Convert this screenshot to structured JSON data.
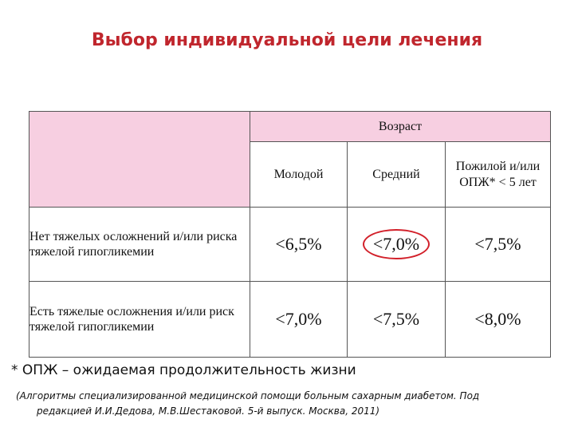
{
  "title": "Выбор индивидуальной цели лечения",
  "table": {
    "group_header": "Возраст",
    "columns": [
      "Молодой",
      "Средний",
      "Пожилой и/или ОПЖ* < 5 лет"
    ],
    "rows": [
      {
        "label": "Нет тяжелых осложнений и/или риска тяжелой гипогликемии",
        "values": [
          "<6,5%",
          "<7,0%",
          "<7,5%"
        ]
      },
      {
        "label": "Есть тяжелые осложнения и/или риск тяжелой гипогликемии",
        "values": [
          "<7,0%",
          "<7,5%",
          "<8,0%"
        ]
      }
    ],
    "highlight_color": "#f7cfe1",
    "circle_color": "#d2202a"
  },
  "footnote": "* ОПЖ – ожидаемая продолжительность жизни",
  "source": {
    "line1": "(Алгоритмы специализированной медицинской помощи больным сахарным диабетом. Под",
    "line2": "редакцией И.И.Дедова, М.В.Шестаковой. 5-й выпуск. Москва, 2011)"
  }
}
